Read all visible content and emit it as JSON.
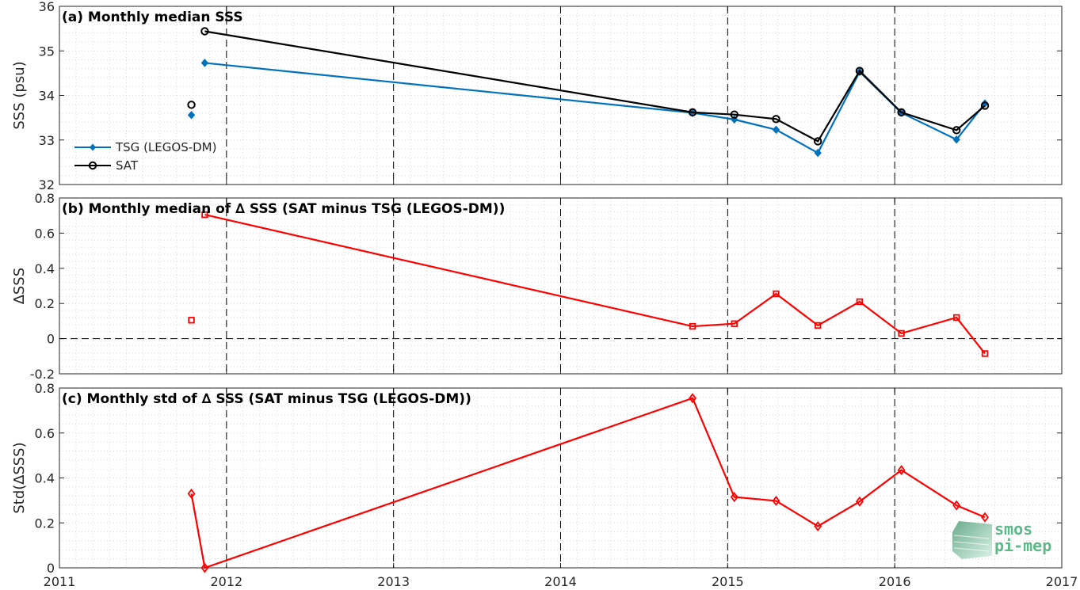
{
  "chart_data": [
    {
      "type": "line",
      "title": "(a) Monthly median SSS",
      "ylabel": "SSS (psu)",
      "xlim": [
        2011,
        2017
      ],
      "ylim": [
        32,
        36
      ],
      "yticks": [
        32,
        33,
        34,
        35,
        36
      ],
      "grid": true,
      "legend": "left",
      "series": [
        {
          "name": "TSG (LEGOS-DM)",
          "color": "#0072BD",
          "marker": "filled-diamond",
          "segments": [
            [
              [
                2011.79,
                33.56
              ]
            ],
            [
              [
                2011.87,
                34.73
              ],
              [
                2014.79,
                33.61
              ],
              [
                2015.04,
                33.46
              ],
              [
                2015.29,
                33.23
              ],
              [
                2015.54,
                32.71
              ],
              [
                2015.79,
                34.53
              ],
              [
                2016.04,
                33.61
              ],
              [
                2016.37,
                33.01
              ],
              [
                2016.54,
                33.82
              ]
            ]
          ]
        },
        {
          "name": "SAT",
          "color": "#000000",
          "marker": "circle",
          "segments": [
            [
              [
                2011.79,
                33.79
              ]
            ],
            [
              [
                2011.87,
                35.44
              ],
              [
                2014.79,
                33.62
              ],
              [
                2015.04,
                33.57
              ],
              [
                2015.29,
                33.47
              ],
              [
                2015.54,
                32.97
              ],
              [
                2015.79,
                34.55
              ],
              [
                2016.04,
                33.62
              ],
              [
                2016.37,
                33.22
              ],
              [
                2016.54,
                33.77
              ]
            ]
          ]
        }
      ]
    },
    {
      "type": "line",
      "title": "(b) Monthly median of ∆ SSS (SAT minus TSG (LEGOS-DM))",
      "ylabel": "∆SSS",
      "xlim": [
        2011,
        2017
      ],
      "ylim": [
        -0.2,
        0.8
      ],
      "yticks": [
        -0.2,
        0,
        0.2,
        0.4,
        0.6,
        0.8
      ],
      "ytick_labels": [
        "-0.2",
        "0",
        "0.2",
        "0.4",
        "0.6",
        "0.8"
      ],
      "zero_line": true,
      "grid": true,
      "series": [
        {
          "name": "",
          "color": "#FF0000",
          "marker": "square",
          "segments": [
            [
              [
                2011.79,
                0.105
              ]
            ],
            [
              [
                2011.87,
                0.705
              ],
              [
                2014.79,
                0.07
              ],
              [
                2015.04,
                0.085
              ],
              [
                2015.29,
                0.255
              ],
              [
                2015.54,
                0.075
              ],
              [
                2015.79,
                0.21
              ],
              [
                2016.04,
                0.03
              ],
              [
                2016.37,
                0.12
              ],
              [
                2016.54,
                -0.085
              ]
            ]
          ]
        }
      ]
    },
    {
      "type": "line",
      "title": "(c) Monthly std of ∆ SSS (SAT minus TSG (LEGOS-DM))",
      "ylabel": "Std(∆SSS)",
      "xlim": [
        2011,
        2017
      ],
      "ylim": [
        0,
        0.8
      ],
      "yticks": [
        0,
        0.2,
        0.4,
        0.6,
        0.8
      ],
      "ytick_labels": [
        "0",
        "0.2",
        "0.4",
        "0.6",
        "0.8"
      ],
      "xticks": [
        2011,
        2012,
        2013,
        2014,
        2015,
        2016,
        2017
      ],
      "grid": true,
      "series": [
        {
          "name": "",
          "color": "#FF0000",
          "marker": "diamond",
          "segments": [
            [
              [
                2011.79,
                0.33
              ],
              [
                2011.87,
                0.0
              ],
              [
                2014.79,
                0.755
              ],
              [
                2015.04,
                0.315
              ],
              [
                2015.29,
                0.298
              ],
              [
                2015.54,
                0.185
              ],
              [
                2015.79,
                0.295
              ],
              [
                2016.04,
                0.435
              ],
              [
                2016.37,
                0.278
              ],
              [
                2016.54,
                0.225
              ]
            ]
          ]
        }
      ]
    }
  ],
  "logo": {
    "line1": "smos",
    "line2": "pi-mep",
    "color": "#5fb88a"
  }
}
